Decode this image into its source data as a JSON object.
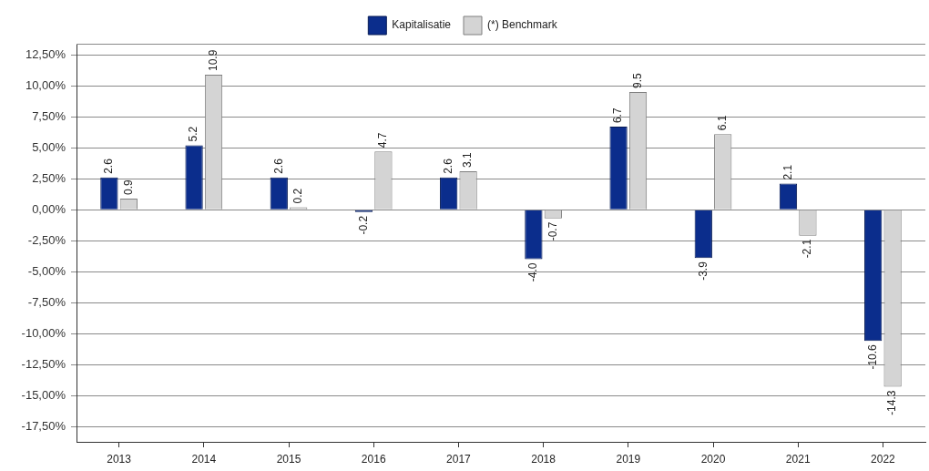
{
  "chart_data": {
    "type": "bar",
    "categories": [
      "2013",
      "2014",
      "2015",
      "2016",
      "2017",
      "2018",
      "2019",
      "2020",
      "2021",
      "2022"
    ],
    "series": [
      {
        "name": "Kapitalisatie",
        "color": "#0b2d8c",
        "values": [
          2.6,
          5.2,
          2.6,
          -0.2,
          2.6,
          -4.0,
          6.7,
          -3.9,
          2.1,
          -10.6
        ],
        "value_labels": [
          "2.6",
          "5.2",
          "2.6",
          "-0.2",
          "2.6",
          "-4.0",
          "6.7",
          "-3.9",
          "2.1",
          "-10.6"
        ]
      },
      {
        "name": "(*) Benchmark",
        "color": "#d4d4d4",
        "values": [
          0.9,
          10.9,
          0.2,
          4.7,
          3.1,
          -0.7,
          9.5,
          6.1,
          -2.1,
          -14.3
        ],
        "value_labels": [
          "0.9",
          "10.9",
          "0.2",
          "4.7",
          "3.1",
          "-0.7",
          "9.5",
          "6.1",
          "-2.1",
          "-14.3"
        ]
      }
    ],
    "ylim": [
      -18.75,
      13.4
    ],
    "yticks": [
      {
        "value": -17.5,
        "label": "-17,50%"
      },
      {
        "value": -15,
        "label": "-15,00%"
      },
      {
        "value": -12.5,
        "label": "-12,50%"
      },
      {
        "value": -10,
        "label": "-10,00%"
      },
      {
        "value": -7.5,
        "label": "-7,50%"
      },
      {
        "value": -5,
        "label": "-5,00%"
      },
      {
        "value": -2.5,
        "label": "-2,50%"
      },
      {
        "value": 0,
        "label": "0,00%"
      },
      {
        "value": 2.5,
        "label": "2,50%"
      },
      {
        "value": 5,
        "label": "5,00%"
      },
      {
        "value": 7.5,
        "label": "7,50%"
      },
      {
        "value": 10,
        "label": "10,00%"
      },
      {
        "value": 12.5,
        "label": "12,50%"
      }
    ],
    "grid": "y",
    "legend": "top"
  }
}
